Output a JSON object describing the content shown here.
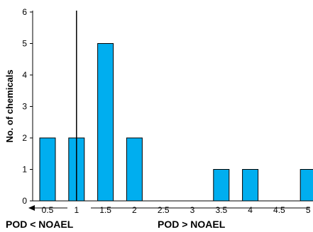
{
  "chart_data": {
    "type": "bar",
    "x": [
      0.5,
      1,
      1.5,
      2,
      2.5,
      3,
      3.5,
      4,
      4.5,
      5
    ],
    "x_tick_labels": [
      "0.5",
      "1",
      "1.5",
      "2",
      "2.5",
      "3",
      "3.5",
      "4",
      "4.5",
      "5"
    ],
    "values": [
      2,
      2,
      5,
      2,
      0,
      0,
      1,
      1,
      0,
      1
    ],
    "ylabel": "No. of chemicals",
    "xlabel": "",
    "ylim": [
      0,
      6
    ],
    "y_ticks": [
      0,
      1,
      2,
      3,
      4,
      5,
      6
    ],
    "reference_line_x": 1,
    "annotations": {
      "left_region": "POD < NOAEL",
      "right_region": "POD > NOAEL"
    },
    "bar_color": "#00aeef",
    "grid": false
  }
}
